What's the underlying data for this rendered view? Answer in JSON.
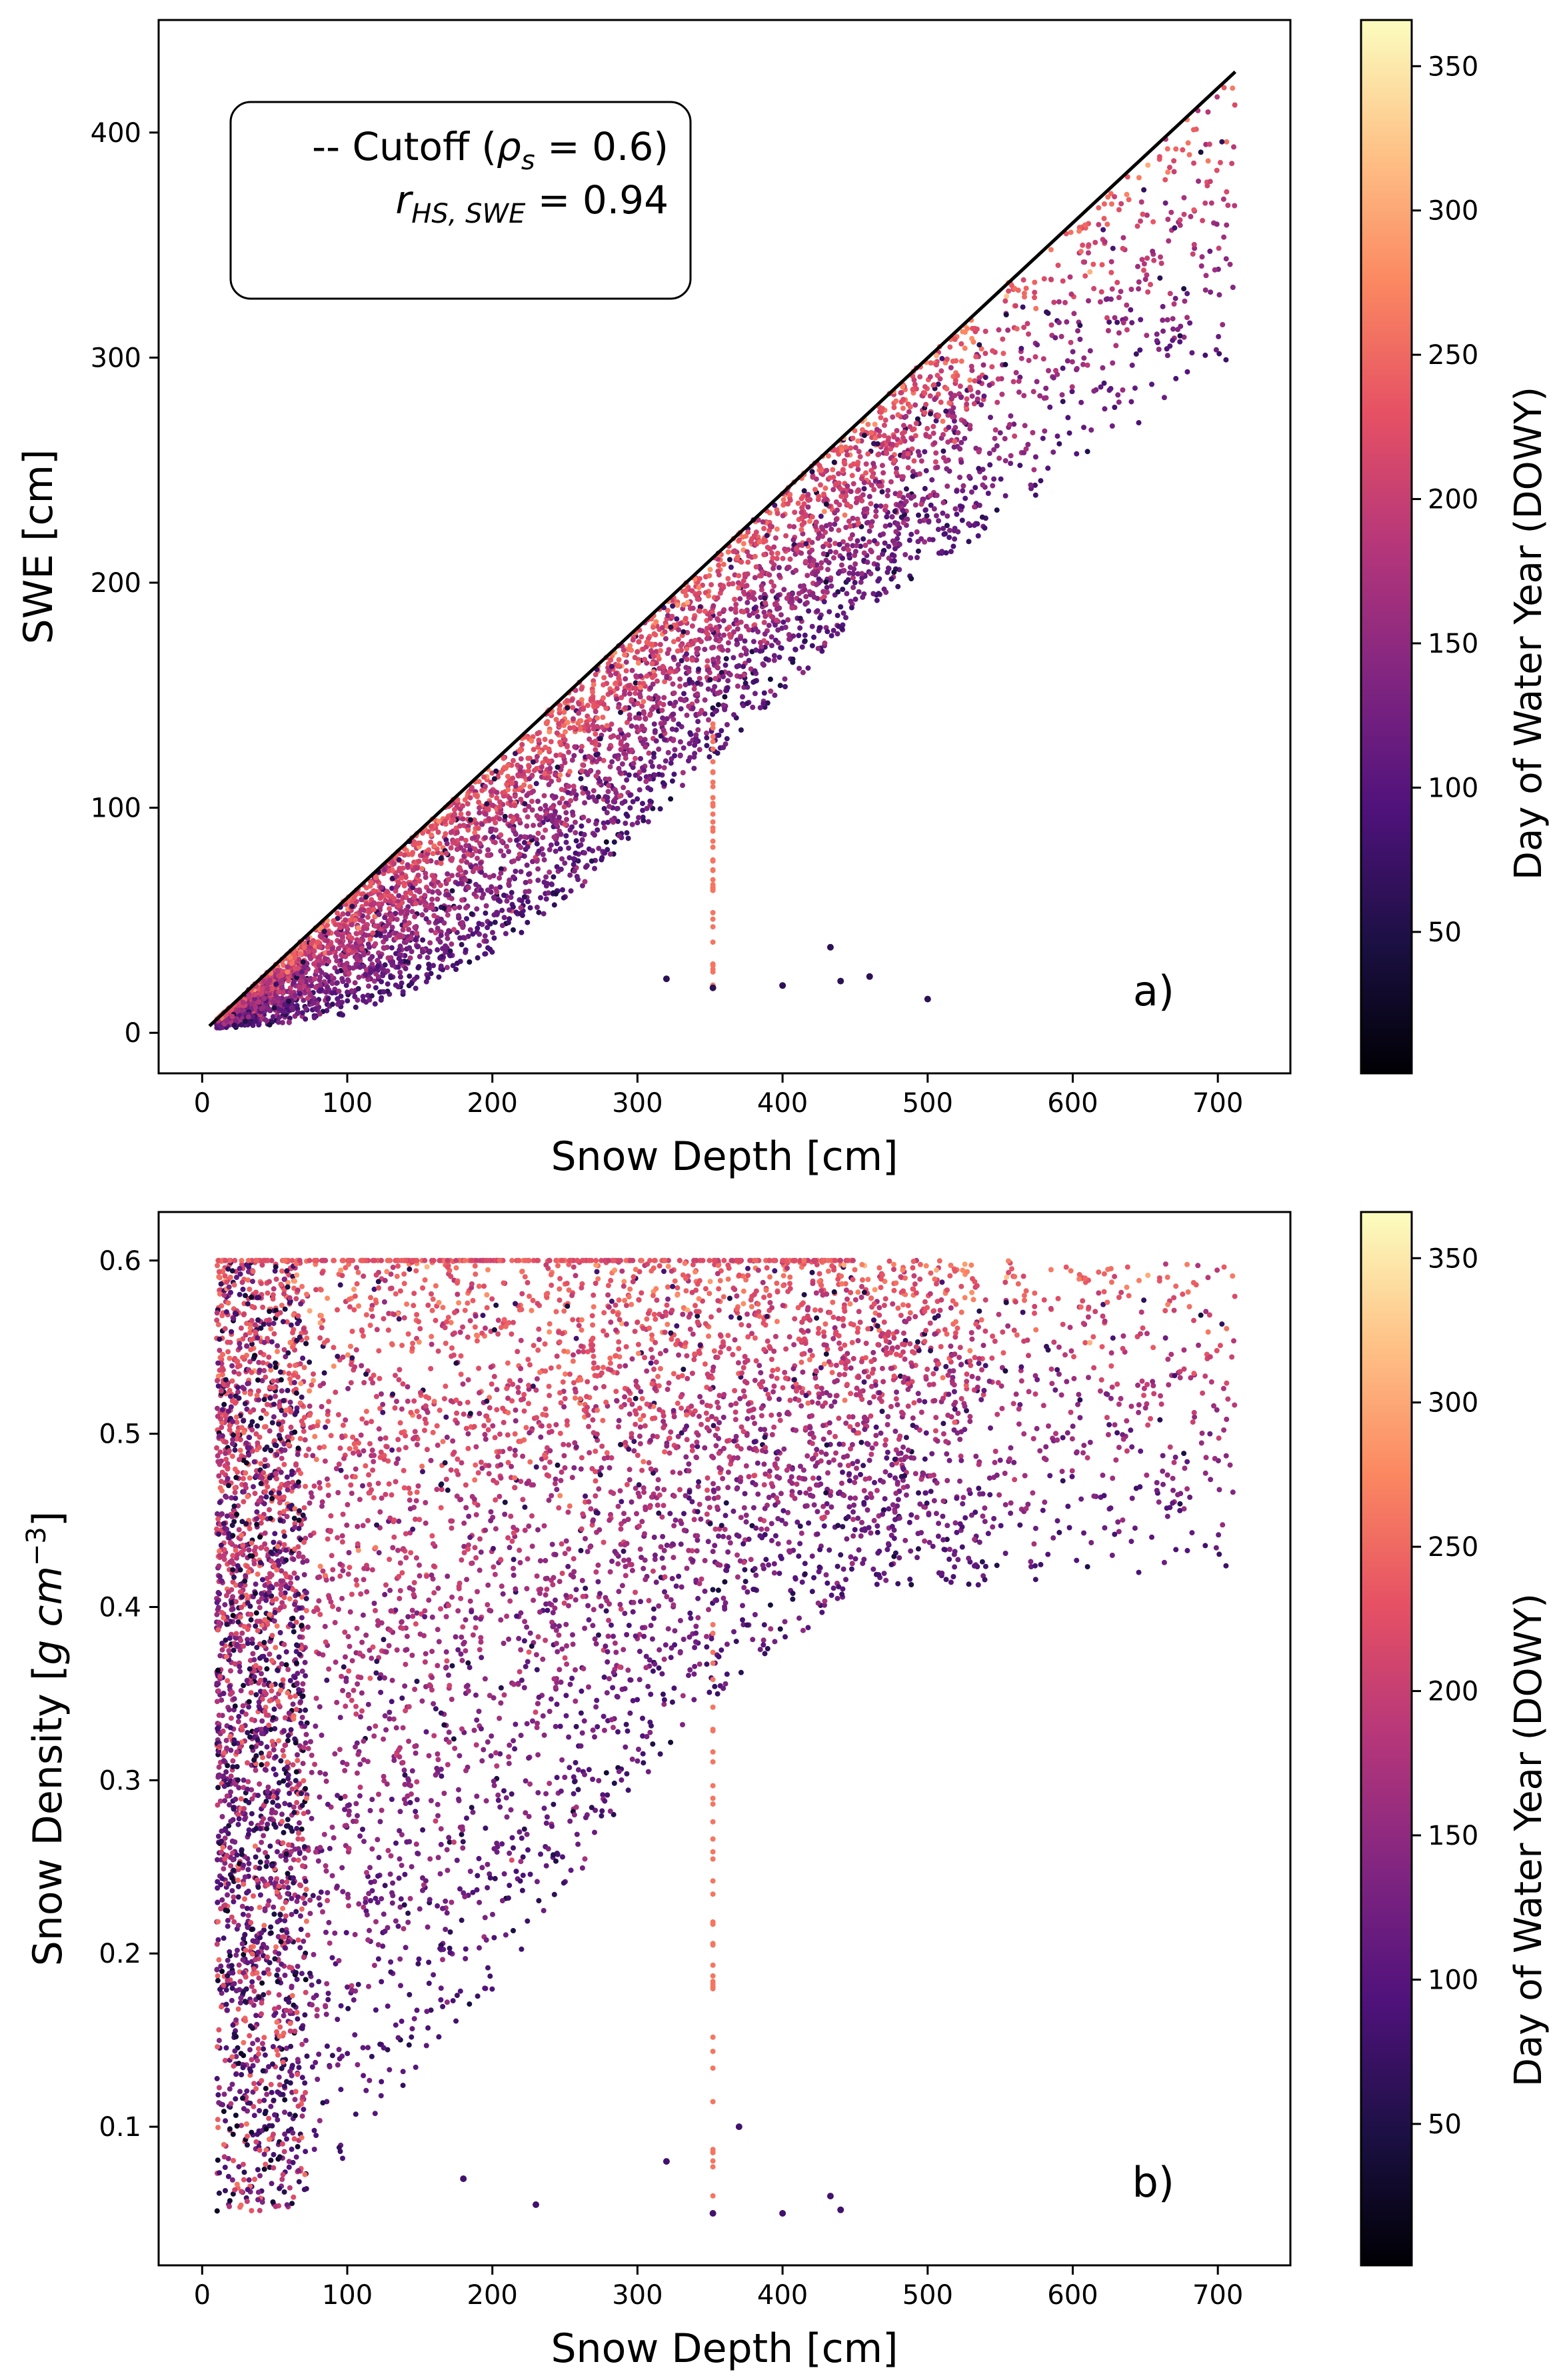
{
  "colors": {
    "cutoff_line": "#000000",
    "colormap": "magma",
    "colormap_stops": [
      "#000004",
      "#1c1044",
      "#4f127b",
      "#812581",
      "#b5367a",
      "#e55064",
      "#fb8761",
      "#fec287",
      "#fcfdbf"
    ]
  },
  "chart_data": [
    {
      "type": "scatter",
      "panel_label": "a)",
      "xlabel": "Snow Depth [cm]",
      "ylabel": "SWE [cm]",
      "xlim": [
        -30,
        750
      ],
      "ylim": [
        -18,
        450
      ],
      "xticks": [
        0,
        100,
        200,
        300,
        400,
        500,
        600,
        700
      ],
      "yticks": [
        0,
        100,
        200,
        300,
        400
      ],
      "legend": {
        "placement": "top-left",
        "line1_prefix": "-- Cutoff  (",
        "line1_symbol": "ρ",
        "line1_sub": "s",
        "line1_value": " = 0.6)",
        "line2_symbol": "r",
        "line2_sub": "HS, SWE",
        "line2_value": " = 0.94"
      },
      "cutoff_line": {
        "density": 0.6,
        "x": [
          5,
          712
        ],
        "y": [
          3,
          427
        ]
      },
      "envelope": {
        "upper_density": 0.6,
        "lower_edge": [
          [
            5,
            2
          ],
          [
            50,
            3
          ],
          [
            100,
            8
          ],
          [
            150,
            18
          ],
          [
            200,
            35
          ],
          [
            250,
            58
          ],
          [
            300,
            88
          ],
          [
            350,
            120
          ],
          [
            400,
            152
          ],
          [
            450,
            180
          ],
          [
            500,
            205
          ],
          [
            550,
            225
          ],
          [
            600,
            248
          ],
          [
            650,
            268
          ],
          [
            700,
            285
          ],
          [
            712,
            290
          ]
        ],
        "max_depth": 712
      },
      "special_points": [
        [
          400,
          21
        ],
        [
          440,
          23
        ],
        [
          433,
          38
        ],
        [
          352,
          20
        ],
        [
          320,
          24
        ],
        [
          460,
          25
        ],
        [
          500,
          15
        ]
      ],
      "colorbar": {
        "label": "Day of  Water Year (DOWY)",
        "range": [
          1,
          366
        ],
        "ticks": [
          50,
          100,
          150,
          200,
          250,
          300,
          350
        ]
      }
    },
    {
      "type": "scatter",
      "panel_label": "b)",
      "xlabel": "Snow Depth [cm]",
      "ylabel_prefix": "Snow Density [",
      "ylabel_g": "g",
      "ylabel_cm": "cm",
      "ylabel_exp": "−3",
      "ylabel_suffix": "]",
      "xlim": [
        -30,
        750
      ],
      "ylim": [
        0.02,
        0.628
      ],
      "xticks": [
        0,
        100,
        200,
        300,
        400,
        500,
        600,
        700
      ],
      "yticks": [
        0.1,
        0.2,
        0.3,
        0.4,
        0.5,
        0.6
      ],
      "envelope": {
        "upper_edge": [
          [
            5,
            0.6
          ],
          [
            450,
            0.6
          ],
          [
            500,
            0.59
          ],
          [
            550,
            0.56
          ],
          [
            600,
            0.53
          ],
          [
            650,
            0.49
          ],
          [
            700,
            0.45
          ],
          [
            712,
            0.435
          ]
        ],
        "lower_edge": [
          [
            40,
            0.05
          ],
          [
            100,
            0.07
          ],
          [
            200,
            0.12
          ],
          [
            300,
            0.18
          ],
          [
            400,
            0.24
          ],
          [
            500,
            0.3
          ],
          [
            600,
            0.36
          ],
          [
            700,
            0.43
          ],
          [
            712,
            0.435
          ]
        ]
      },
      "special_points": [
        [
          400,
          0.05
        ],
        [
          440,
          0.052
        ],
        [
          433,
          0.06
        ],
        [
          352,
          0.05
        ],
        [
          320,
          0.08
        ],
        [
          370,
          0.1
        ],
        [
          230,
          0.055
        ],
        [
          180,
          0.07
        ]
      ],
      "colorbar": {
        "label": "Day of Water Year (DOWY)",
        "range": [
          1,
          366
        ],
        "ticks": [
          50,
          100,
          150,
          200,
          250,
          300,
          350
        ]
      }
    }
  ]
}
